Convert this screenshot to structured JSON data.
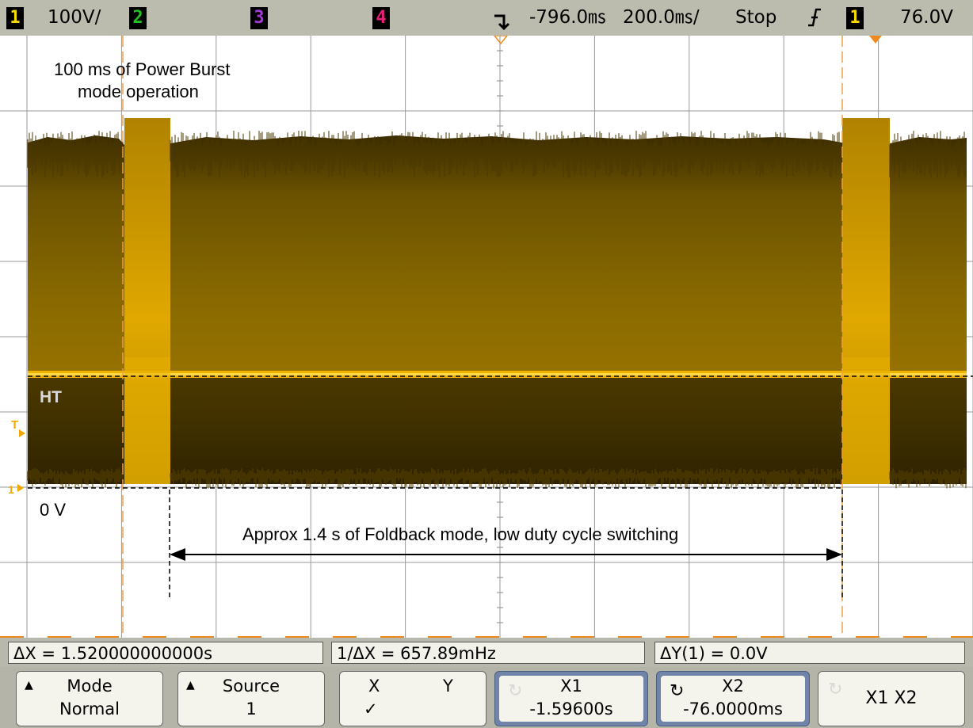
{
  "status_bar": {
    "ch1_num": "1",
    "ch1_scale": "100V/",
    "ch2_num": "2",
    "ch3_num": "3",
    "ch4_num": "4",
    "time_delay": "-796.0㎳",
    "time_scale": "200.0㎳/",
    "run_state": "Stop",
    "trigger_slope_icon": "rising-edge-icon",
    "trigger_source": "1",
    "trigger_level": "76.0V"
  },
  "annotations": {
    "burst_line1": "100 ms of Power Burst",
    "burst_line2": "mode operation",
    "ht_label": "HT",
    "zero_label": "0 V",
    "foldback_label": "Approx 1.4 s of Foldback mode, low duty cycle switching",
    "trigger_marker": "T",
    "ground_marker": "1"
  },
  "measurements": {
    "delta_x": "ΔX = 1.520000000000s",
    "inv_delta_x": "1/ΔX = 657.89mHz",
    "delta_y": "ΔY(1) = 0.0V"
  },
  "softkeys": {
    "mode_top": "Mode",
    "mode_bottom": "Normal",
    "source_top": "Source",
    "source_bottom": "1",
    "x_label": "X",
    "y_label": "Y",
    "x_check": "✓",
    "x1_top": "X1",
    "x1_bottom": "-1.59600s",
    "x2_top": "X2",
    "x2_bottom": "-76.0000ms",
    "x1x2_label": "X1 X2"
  },
  "colors": {
    "trace": "#e8a800",
    "trace_dark": "#6e5400",
    "ch1": "#f5d800",
    "ch2": "#22c21e",
    "ch3": "#a33ad8",
    "ch4": "#e8207a",
    "highlight": "#6f84a8"
  }
}
